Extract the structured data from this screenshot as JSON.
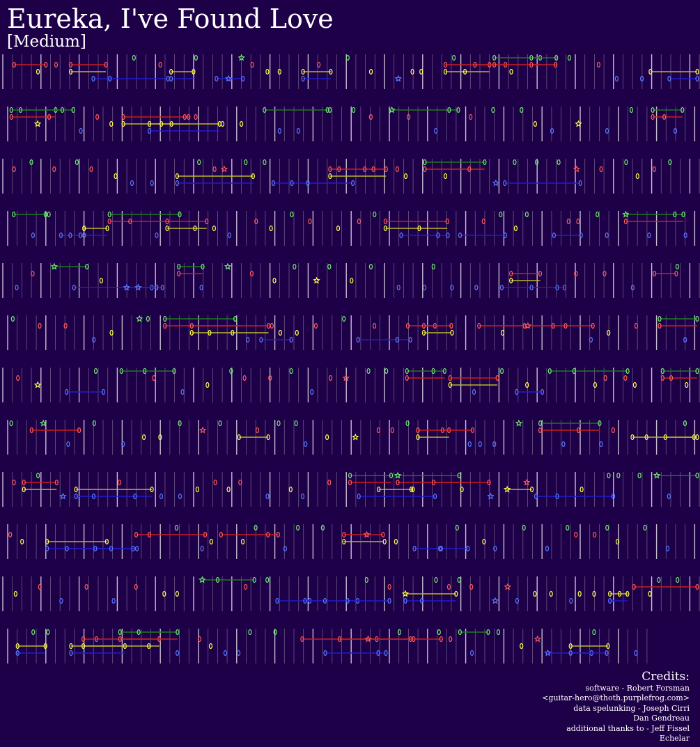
{
  "song": {
    "title": "Eureka, I've Found Love",
    "difficulty": "[Medium]"
  },
  "colors": {
    "background": "#1e0048",
    "beat_line": "#ffffff",
    "green": "#6ee86e",
    "red": "#ff5a5a",
    "yellow": "#ffff50",
    "blue": "#5a78ff",
    "orange": "#ff9a32",
    "green_sustain": "#1a7a1a",
    "red_sustain": "#c81e1e",
    "yellow_sustain": "#b8b828",
    "blue_sustain": "#1e1ecc"
  },
  "note_shapes": {
    "regular": "ellipse",
    "star_power": "star"
  },
  "credits": {
    "heading": "Credits:",
    "lines": [
      "software - Robert Forsman",
      "<guitar-hero@thoth.purplefrog.com>",
      "data spelunking - Joseph Cirri",
      "Dan Gendreau",
      "additional thanks to - Jeff Fissel",
      "Echelar"
    ]
  }
}
